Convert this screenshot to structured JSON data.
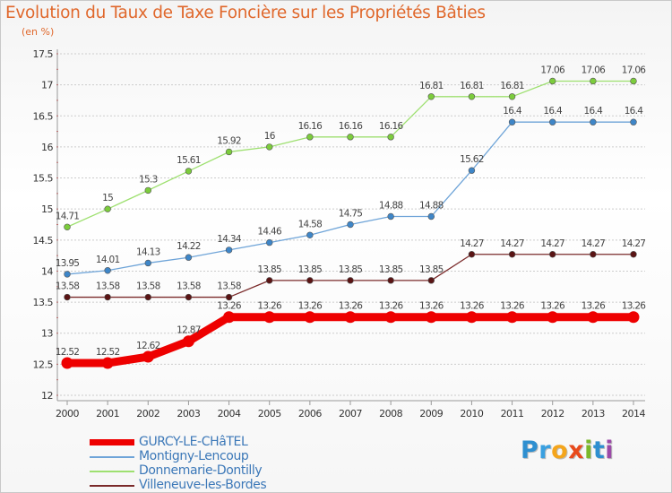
{
  "header": {
    "title": "Evolution du Taux de Taxe Foncière sur les Propriétés Bâties",
    "unit": "(en %)"
  },
  "colors": {
    "title": "#e0682c",
    "grid": "#cccccc",
    "axis_text": "#333333",
    "legend_text": "#3c78b8"
  },
  "logo": {
    "letters": [
      "P",
      "r",
      "o",
      "x",
      "i",
      "t",
      "i"
    ],
    "colors": [
      "#2e8fd0",
      "#3aa0e0",
      "#f4a51c",
      "#e84a1c",
      "#7ab82a",
      "#2e8fd0",
      "#9c4aa8"
    ]
  },
  "chart_data": {
    "type": "line",
    "x": [
      "2000",
      "2001",
      "2002",
      "2003",
      "2004",
      "2005",
      "2006",
      "2007",
      "2008",
      "2009",
      "2010",
      "2011",
      "2012",
      "2013",
      "2014"
    ],
    "ylim": [
      12,
      17.5
    ],
    "yticks": [
      "12",
      "12.5",
      "13",
      "13.5",
      "14",
      "14.5",
      "15",
      "15.5",
      "16",
      "16.5",
      "17",
      "17.5"
    ],
    "grid": "y-dotted",
    "legend_position": "bottom-left",
    "series": [
      {
        "name": "GURCY-LE-CHâTEL",
        "color": "#ee0000",
        "marker_color": "#ee0000",
        "width": "thick",
        "values": [
          12.52,
          12.52,
          12.62,
          12.87,
          13.26,
          13.26,
          13.26,
          13.26,
          13.26,
          13.26,
          13.26,
          13.26,
          13.26,
          13.26,
          13.26
        ],
        "labels": [
          "12.52",
          "12.52",
          "12.62",
          "12.87",
          "13.26",
          "13.26",
          "13.26",
          "13.26",
          "13.26",
          "13.26",
          "13.26",
          "13.26",
          "13.26",
          "13.26",
          "13.26"
        ]
      },
      {
        "name": "Montigny-Lencoup",
        "color": "#6ea4d8",
        "marker_color": "#3e86c8",
        "width": "thin",
        "values": [
          13.95,
          14.01,
          14.13,
          14.22,
          14.34,
          14.46,
          14.58,
          14.75,
          14.88,
          14.88,
          15.62,
          16.4,
          16.4,
          16.4,
          16.4
        ],
        "labels": [
          "13.95",
          "14.01",
          "14.13",
          "14.22",
          "14.34",
          "14.46",
          "14.58",
          "14.75",
          "14.88",
          "14.88",
          "15.62",
          "16.4",
          "16.4",
          "16.4",
          "16.4"
        ]
      },
      {
        "name": "Donnemarie-Dontilly",
        "color": "#9ee070",
        "marker_color": "#7ccc3c",
        "width": "thin",
        "values": [
          14.71,
          15,
          15.3,
          15.61,
          15.92,
          16,
          16.16,
          16.16,
          16.16,
          16.81,
          16.81,
          16.81,
          17.06,
          17.06,
          17.06
        ],
        "labels": [
          "14.71",
          "15",
          "15.3",
          "15.61",
          "15.92",
          "16",
          "16.16",
          "16.16",
          "16.16",
          "16.81",
          "16.81",
          "16.81",
          "17.06",
          "17.06",
          "17.06"
        ]
      },
      {
        "name": "Villeneuve-les-Bordes",
        "color": "#7a2a2a",
        "marker_color": "#5a1414",
        "width": "thin",
        "values": [
          13.58,
          13.58,
          13.58,
          13.58,
          13.58,
          13.85,
          13.85,
          13.85,
          13.85,
          13.85,
          14.27,
          14.27,
          14.27,
          14.27,
          14.27
        ],
        "labels": [
          "13.58",
          "13.58",
          "13.58",
          "13.58",
          "13.58",
          "13.85",
          "13.85",
          "13.85",
          "13.85",
          "13.85",
          "14.27",
          "14.27",
          "14.27",
          "14.27",
          "14.27"
        ]
      }
    ]
  }
}
